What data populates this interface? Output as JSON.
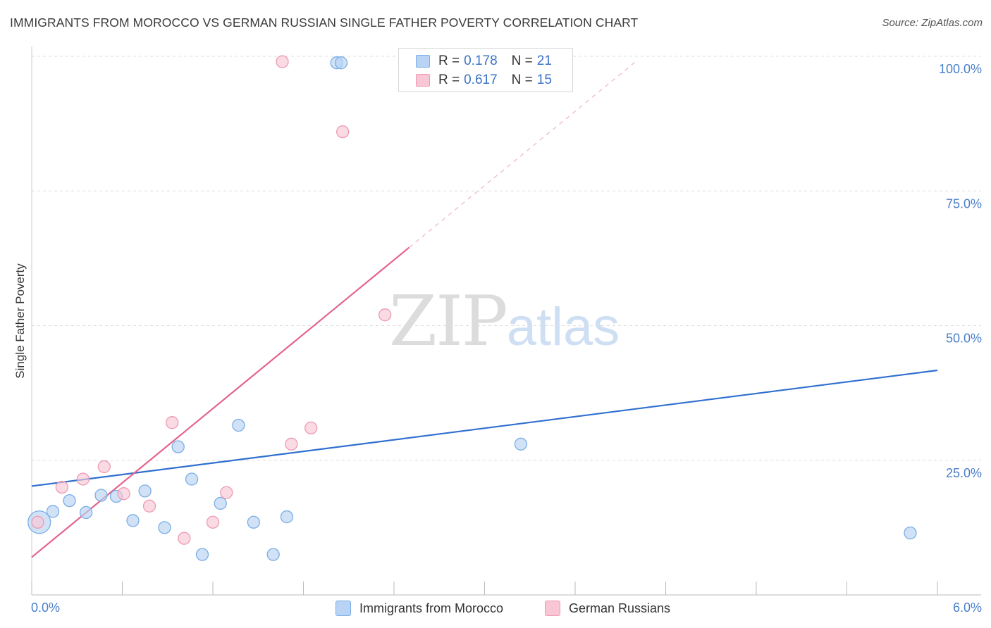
{
  "header": {
    "title": "IMMIGRANTS FROM MOROCCO VS GERMAN RUSSIAN SINGLE FATHER POVERTY CORRELATION CHART",
    "source": "Source: ZipAtlas.com"
  },
  "watermark": {
    "zip": "ZIP",
    "atlas": "atlas"
  },
  "legend": {
    "rows": [
      {
        "r_label": "R =",
        "r_value": "0.178",
        "n_label": "N =",
        "n_value": "21"
      },
      {
        "r_label": "R =",
        "r_value": "0.617",
        "n_label": "N =",
        "n_value": "15"
      }
    ]
  },
  "bottom_legend": {
    "series_a": "Immigrants from Morocco",
    "series_b": "German Russians"
  },
  "colors": {
    "blue_fill": "#b8d3f3",
    "blue_stroke": "#7aaee6",
    "blue_line": "#2f6fcf",
    "pink_fill": "#f8c6d4",
    "pink_stroke": "#ee9ab3",
    "pink_line": "#e4638c",
    "tick_text": "#4a7fcb",
    "grid": "#dedede"
  },
  "chart_data": {
    "type": "scatter",
    "title": "IMMIGRANTS FROM MOROCCO VS GERMAN RUSSIAN SINGLE FATHER POVERTY CORRELATION CHART",
    "xlabel": "",
    "ylabel": "Single Father Poverty",
    "xlim": [
      0,
      6
    ],
    "ylim": [
      0,
      100
    ],
    "x_tick_labels": [
      "0.0%",
      "6.0%"
    ],
    "y_tick_labels": [
      "25.0%",
      "50.0%",
      "75.0%",
      "100.0%"
    ],
    "y_ticks": [
      25,
      50,
      75,
      100
    ],
    "grid": true,
    "legend_position": "top-center",
    "series": [
      {
        "name": "Immigrants from Morocco",
        "color": "#b8d3f3",
        "points": [
          {
            "x": 0.05,
            "y": 13.5,
            "size": "large"
          },
          {
            "x": 0.14,
            "y": 15.5
          },
          {
            "x": 0.25,
            "y": 17.5
          },
          {
            "x": 0.36,
            "y": 15.3
          },
          {
            "x": 0.46,
            "y": 18.5
          },
          {
            "x": 0.56,
            "y": 18.3
          },
          {
            "x": 0.67,
            "y": 13.8
          },
          {
            "x": 0.75,
            "y": 19.3
          },
          {
            "x": 0.88,
            "y": 12.5
          },
          {
            "x": 0.97,
            "y": 27.5
          },
          {
            "x": 1.06,
            "y": 21.5
          },
          {
            "x": 1.13,
            "y": 7.5
          },
          {
            "x": 1.25,
            "y": 17.0
          },
          {
            "x": 1.37,
            "y": 31.5
          },
          {
            "x": 1.47,
            "y": 13.5
          },
          {
            "x": 1.6,
            "y": 7.5
          },
          {
            "x": 1.69,
            "y": 14.5
          },
          {
            "x": 2.02,
            "y": 98.8
          },
          {
            "x": 2.05,
            "y": 98.8
          },
          {
            "x": 3.24,
            "y": 28.0
          },
          {
            "x": 5.82,
            "y": 11.5
          }
        ],
        "trend": {
          "x": [
            0,
            6
          ],
          "y": [
            20.2,
            41.7
          ]
        }
      },
      {
        "name": "German Russians",
        "color": "#f8c6d4",
        "points": [
          {
            "x": 0.04,
            "y": 13.5
          },
          {
            "x": 0.2,
            "y": 20.0
          },
          {
            "x": 0.34,
            "y": 21.5
          },
          {
            "x": 0.48,
            "y": 23.8
          },
          {
            "x": 0.61,
            "y": 18.8
          },
          {
            "x": 0.78,
            "y": 16.5
          },
          {
            "x": 0.93,
            "y": 32.0
          },
          {
            "x": 1.01,
            "y": 10.5
          },
          {
            "x": 1.2,
            "y": 13.5
          },
          {
            "x": 1.29,
            "y": 19.0
          },
          {
            "x": 1.72,
            "y": 28.0
          },
          {
            "x": 1.85,
            "y": 31.0
          },
          {
            "x": 1.66,
            "y": 99.0
          },
          {
            "x": 2.06,
            "y": 86.0
          },
          {
            "x": 2.34,
            "y": 52.0
          }
        ],
        "trend": {
          "x": [
            0,
            2.5
          ],
          "y": [
            7.0,
            64.5
          ]
        },
        "trend_extension": {
          "x": [
            2.5,
            4.0
          ],
          "y": [
            64.5,
            99.0
          ]
        }
      }
    ]
  }
}
